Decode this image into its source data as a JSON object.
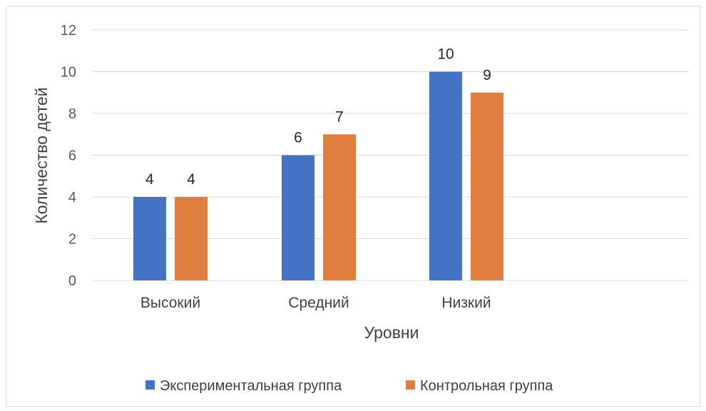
{
  "chart_data": {
    "type": "bar",
    "title": "",
    "xlabel": "Уровни",
    "ylabel": "Количество детей",
    "categories": [
      "Высокий",
      "Средний",
      "Низкий"
    ],
    "series": [
      {
        "name": "Экспериментальная группа",
        "values": [
          4,
          6,
          10
        ],
        "color": "#4472c4"
      },
      {
        "name": "Контрольная группа",
        "values": [
          4,
          7,
          9
        ],
        "color": "#e07f3f"
      }
    ],
    "ylim": [
      0,
      12
    ],
    "yticks": [
      0,
      2,
      4,
      6,
      8,
      10,
      12
    ],
    "grid": true,
    "data_labels": true,
    "legend_position": "bottom"
  }
}
